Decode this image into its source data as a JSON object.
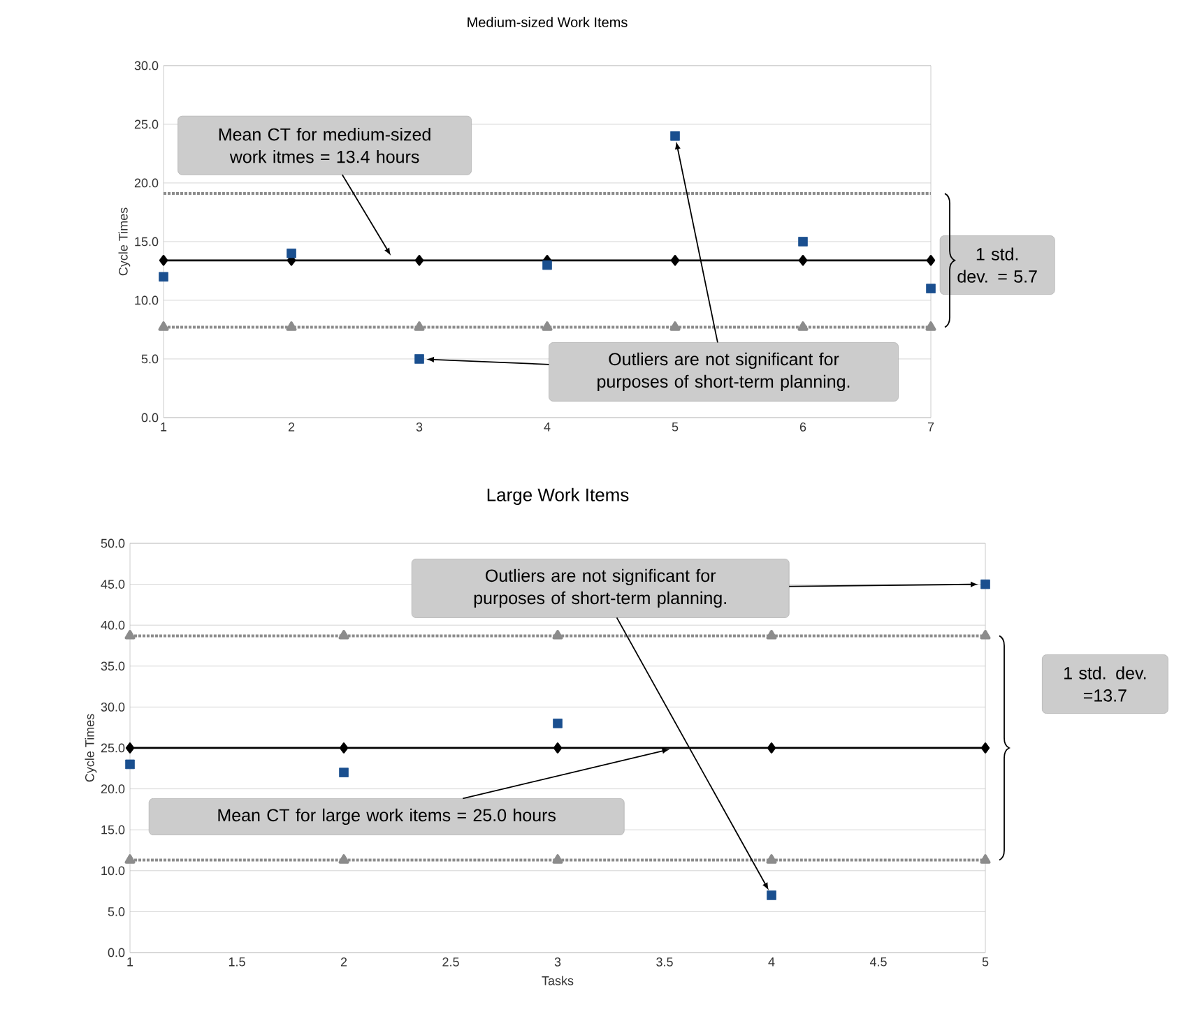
{
  "chart_data": [
    {
      "type": "scatter",
      "title": "Medium-sized Work Items",
      "ylabel": "Cycle Times",
      "x": [
        1,
        2,
        3,
        4,
        5,
        6,
        7
      ],
      "xlim": [
        1,
        7
      ],
      "ylim": [
        0,
        30
      ],
      "xticks": [
        1,
        2,
        3,
        4,
        5,
        6,
        7
      ],
      "yticks": [
        {
          "value": 0,
          "label": "0.0"
        },
        {
          "value": 5,
          "label": "5.0"
        },
        {
          "value": 10,
          "label": "10.0"
        },
        {
          "value": 15,
          "label": "15.0"
        },
        {
          "value": 20,
          "label": "20.0"
        },
        {
          "value": 25,
          "label": "25.0"
        },
        {
          "value": 30,
          "label": "30.0"
        }
      ],
      "grid": "y",
      "series": [
        {
          "type": "line",
          "color": "#8c8c8c",
          "line_style": "dotted",
          "marker": "none",
          "values": [
            19.1,
            19.1,
            19.1,
            19.1,
            19.1,
            19.1,
            19.1
          ]
        },
        {
          "type": "line",
          "color": "#8c8c8c",
          "line_style": "dotted",
          "marker": "triangle",
          "values": [
            7.7,
            7.7,
            7.7,
            7.7,
            7.7,
            7.7,
            7.7
          ]
        },
        {
          "type": "line",
          "color": "#000000",
          "line_style": "solid",
          "marker": "diamond",
          "values": [
            13.4,
            13.4,
            13.4,
            13.4,
            13.4,
            13.4,
            13.4
          ]
        },
        {
          "type": "scatter",
          "color": "#1a4f8f",
          "marker": "square",
          "values": [
            12,
            14,
            5,
            13,
            24,
            15,
            11
          ]
        }
      ],
      "annotations": [
        {
          "text": "Mean CT for medium-sized work itmes = 13.4 hours",
          "x": 2.8,
          "y": 13.4
        },
        {
          "text": "Outliers are not significant for purposes of short-term planning.",
          "x": 5,
          "y": 24
        },
        "1 std. dev. = 5.7"
      ]
    },
    {
      "type": "scatter",
      "title": "Large Work Items",
      "xlabel": "Tasks",
      "ylabel": "Cycle Times",
      "x": [
        1,
        2,
        3,
        4,
        5
      ],
      "xlim": [
        1,
        5
      ],
      "ylim": [
        0,
        50
      ],
      "xticks": [
        1,
        {
          "value": 1.5,
          "label": "1.5"
        },
        2,
        {
          "value": 2.5,
          "label": "2.5"
        },
        3,
        {
          "value": 3.5,
          "label": "3.5"
        },
        4,
        {
          "value": 4.5,
          "label": "4.5"
        },
        5
      ],
      "yticks": [
        {
          "value": 0,
          "label": "0.0"
        },
        {
          "value": 5,
          "label": "5.0"
        },
        {
          "value": 10,
          "label": "10.0"
        },
        {
          "value": 15,
          "label": "15.0"
        },
        {
          "value": 20,
          "label": "20.0"
        },
        {
          "value": 25,
          "label": "25.0"
        },
        {
          "value": 30,
          "label": "30.0"
        },
        {
          "value": 35,
          "label": "35.0"
        },
        {
          "value": 40,
          "label": "40.0"
        },
        {
          "value": 45,
          "label": "45.0"
        },
        {
          "value": 50,
          "label": "50.0"
        }
      ],
      "grid": "y",
      "series": [
        {
          "type": "line",
          "color": "#8c8c8c",
          "line_style": "dotted",
          "marker": "triangle",
          "values": [
            38.7,
            38.7,
            38.7,
            38.7,
            38.7
          ]
        },
        {
          "type": "line",
          "color": "#8c8c8c",
          "line_style": "dotted",
          "marker": "triangle",
          "values": [
            11.3,
            11.3,
            11.3,
            11.3,
            11.3
          ]
        },
        {
          "type": "line",
          "color": "#000000",
          "line_style": "solid",
          "marker": "diamond",
          "values": [
            25,
            25,
            25,
            25,
            25
          ]
        },
        {
          "type": "scatter",
          "color": "#1a4f8f",
          "marker": "square",
          "values": [
            23,
            22,
            28,
            7,
            45
          ]
        }
      ],
      "annotations": [
        {
          "text": "Outliers are not significant for purposes of short-term planning.",
          "x": 4,
          "y": 7
        },
        {
          "text": "Mean CT for large work items = 25.0 hours",
          "x": 3.55,
          "y": 25
        },
        "1 std. dev. =13.7"
      ]
    }
  ]
}
